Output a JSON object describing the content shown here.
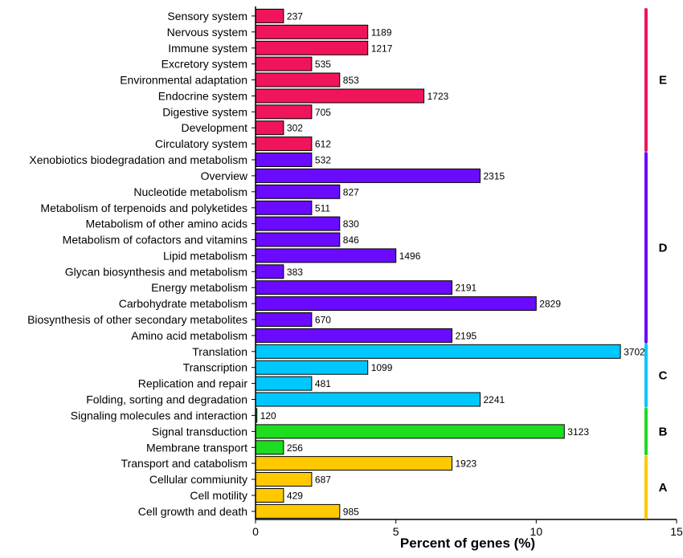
{
  "chart_data": {
    "type": "bar",
    "orientation": "horizontal",
    "title": "",
    "xlabel": "Percent of genes (%)",
    "ylabel": "",
    "xlim": [
      0,
      15
    ],
    "xticks": [
      0,
      5,
      10,
      15
    ],
    "grid": false,
    "legend": "none",
    "categories": [
      {
        "name": "Sensory system",
        "percent": 1.0,
        "count": "237",
        "group": "E"
      },
      {
        "name": "Nervous system",
        "percent": 4.0,
        "count": "1189",
        "group": "E"
      },
      {
        "name": "Immune system",
        "percent": 4.0,
        "count": "1217",
        "group": "E"
      },
      {
        "name": "Excretory system",
        "percent": 2.0,
        "count": "535",
        "group": "E"
      },
      {
        "name": "Environmental adaptation",
        "percent": 3.0,
        "count": "853",
        "group": "E"
      },
      {
        "name": "Endocrine system",
        "percent": 6.0,
        "count": "1723",
        "group": "E"
      },
      {
        "name": "Digestive system",
        "percent": 2.0,
        "count": "705",
        "group": "E"
      },
      {
        "name": "Development",
        "percent": 1.0,
        "count": "302",
        "group": "E"
      },
      {
        "name": "Circulatory system",
        "percent": 2.0,
        "count": "612",
        "group": "E"
      },
      {
        "name": "Xenobiotics biodegradation and metabolism",
        "percent": 2.0,
        "count": "532",
        "group": "D"
      },
      {
        "name": "Overview",
        "percent": 8.0,
        "count": "2315",
        "group": "D"
      },
      {
        "name": "Nucleotide metabolism",
        "percent": 3.0,
        "count": "827",
        "group": "D"
      },
      {
        "name": "Metabolism of terpenoids and polyketides",
        "percent": 2.0,
        "count": "511",
        "group": "D"
      },
      {
        "name": "Metabolism of other amino acids",
        "percent": 3.0,
        "count": "830",
        "group": "D"
      },
      {
        "name": "Metabolism of cofactors and vitamins",
        "percent": 3.0,
        "count": "846",
        "group": "D"
      },
      {
        "name": "Lipid metabolism",
        "percent": 5.0,
        "count": "1496",
        "group": "D"
      },
      {
        "name": "Glycan biosynthesis and metabolism",
        "percent": 1.0,
        "count": "383",
        "group": "D"
      },
      {
        "name": "Energy metabolism",
        "percent": 7.0,
        "count": "2191",
        "group": "D"
      },
      {
        "name": "Carbohydrate metabolism",
        "percent": 10.0,
        "count": "2829",
        "group": "D"
      },
      {
        "name": "Biosynthesis of other secondary metabolites",
        "percent": 2.0,
        "count": "670",
        "group": "D"
      },
      {
        "name": "Amino acid metabolism",
        "percent": 7.0,
        "count": "2195",
        "group": "D"
      },
      {
        "name": "Translation",
        "percent": 13.0,
        "count": "3702",
        "group": "C"
      },
      {
        "name": "Transcription",
        "percent": 4.0,
        "count": "1099",
        "group": "C"
      },
      {
        "name": "Replication and repair",
        "percent": 2.0,
        "count": "481",
        "group": "C"
      },
      {
        "name": "Folding, sorting and degradation",
        "percent": 8.0,
        "count": "2241",
        "group": "C"
      },
      {
        "name": "Signaling molecules and interaction",
        "percent": 0.05,
        "count": "120",
        "group": "B"
      },
      {
        "name": "Signal transduction",
        "percent": 11.0,
        "count": "3123",
        "group": "B"
      },
      {
        "name": "Membrane transport",
        "percent": 1.0,
        "count": "256",
        "group": "B"
      },
      {
        "name": "Transport and catabolism",
        "percent": 7.0,
        "count": "1923",
        "group": "A"
      },
      {
        "name": "Cellular commiunity",
        "percent": 2.0,
        "count": "687",
        "group": "A"
      },
      {
        "name": "Cell motility",
        "percent": 1.0,
        "count": "429",
        "group": "A"
      },
      {
        "name": "Cell growth and death",
        "percent": 3.0,
        "count": "985",
        "group": "A"
      }
    ],
    "groups": [
      {
        "label": "E",
        "color": "#f0145a"
      },
      {
        "label": "D",
        "color": "#6a0aff"
      },
      {
        "label": "C",
        "color": "#00c8ff"
      },
      {
        "label": "B",
        "color": "#1edc1e"
      },
      {
        "label": "A",
        "color": "#ffc800"
      }
    ]
  }
}
